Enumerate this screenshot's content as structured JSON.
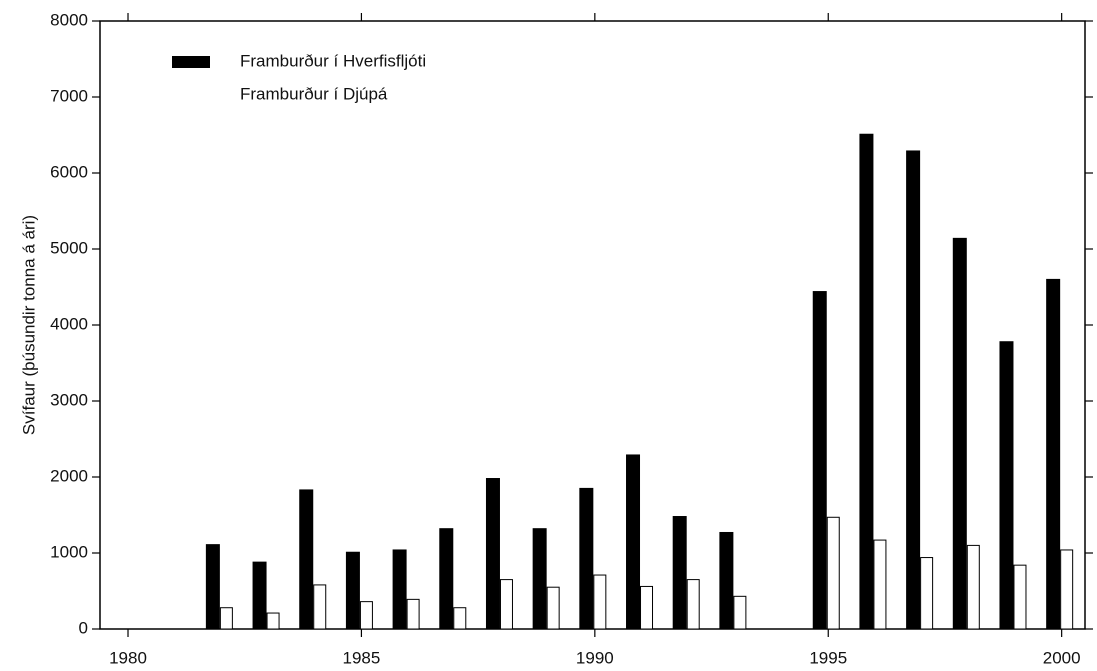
{
  "chart_data": {
    "type": "bar",
    "y_label": "Svífaur (þúsundir tonna á ári)",
    "x": [
      1982,
      1983,
      1984,
      1985,
      1986,
      1987,
      1988,
      1989,
      1990,
      1991,
      1992,
      1993,
      1995,
      1996,
      1997,
      1998,
      1999,
      2000
    ],
    "series": [
      {
        "name": "Framburður í Hverfisfljóti",
        "color": "#000000",
        "values": [
          1110,
          880,
          1830,
          1010,
          1040,
          1320,
          1980,
          1320,
          1850,
          2290,
          1480,
          1270,
          4440,
          6510,
          6290,
          5140,
          3780,
          4600
        ]
      },
      {
        "name": "Framburður í Djúpá",
        "color": "#ffffff",
        "values": [
          280,
          210,
          580,
          360,
          390,
          280,
          650,
          550,
          710,
          560,
          650,
          430,
          1470,
          1170,
          940,
          1100,
          840,
          1040
        ]
      }
    ],
    "xlim": [
      1979.4,
      2000.5
    ],
    "xticks": [
      1980,
      1985,
      1990,
      1995,
      2000
    ],
    "ylim": [
      0,
      8000
    ],
    "yticks": [
      0,
      1000,
      2000,
      3000,
      4000,
      5000,
      6000,
      7000,
      8000
    ],
    "legend": "upper-left"
  }
}
